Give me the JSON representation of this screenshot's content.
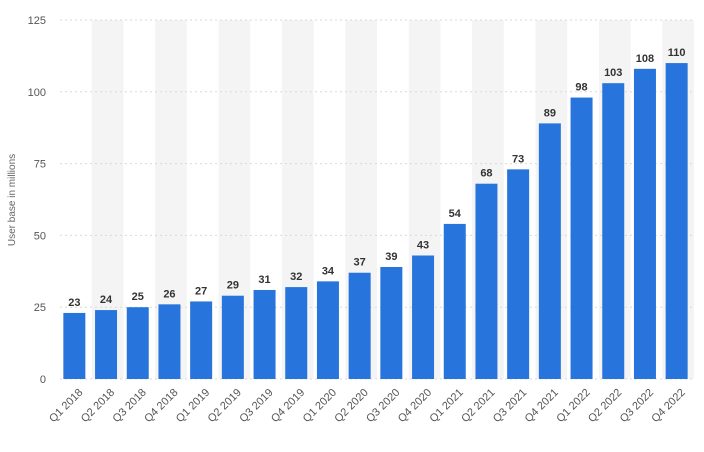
{
  "chart_data": {
    "type": "bar",
    "title": "",
    "xlabel": "",
    "ylabel": "User base in millions",
    "ylim": [
      0,
      125
    ],
    "yticks": [
      0,
      25,
      50,
      75,
      100,
      125
    ],
    "grid": true,
    "bar_color": "#2874DD",
    "stripe_color": "#F4F4F4",
    "categories": [
      "Q1 2018",
      "Q2 2018",
      "Q3 2018",
      "Q4 2018",
      "Q1 2019",
      "Q2 2019",
      "Q3 2019",
      "Q4 2019",
      "Q1 2020",
      "Q2 2020",
      "Q3 2020",
      "Q4 2020",
      "Q1 2021",
      "Q2 2021",
      "Q3 2021",
      "Q4 2021",
      "Q1 2022",
      "Q2 2022",
      "Q3 2022",
      "Q4 2022"
    ],
    "values": [
      23,
      24,
      25,
      26,
      27,
      29,
      31,
      32,
      34,
      37,
      39,
      43,
      54,
      68,
      73,
      89,
      98,
      103,
      108,
      110
    ],
    "data_labels": [
      "23",
      "24",
      "25",
      "26",
      "27",
      "29",
      "31",
      "32",
      "34",
      "37",
      "39",
      "43",
      "54",
      "68",
      "73",
      "89",
      "98",
      "103",
      "108",
      "110"
    ]
  }
}
